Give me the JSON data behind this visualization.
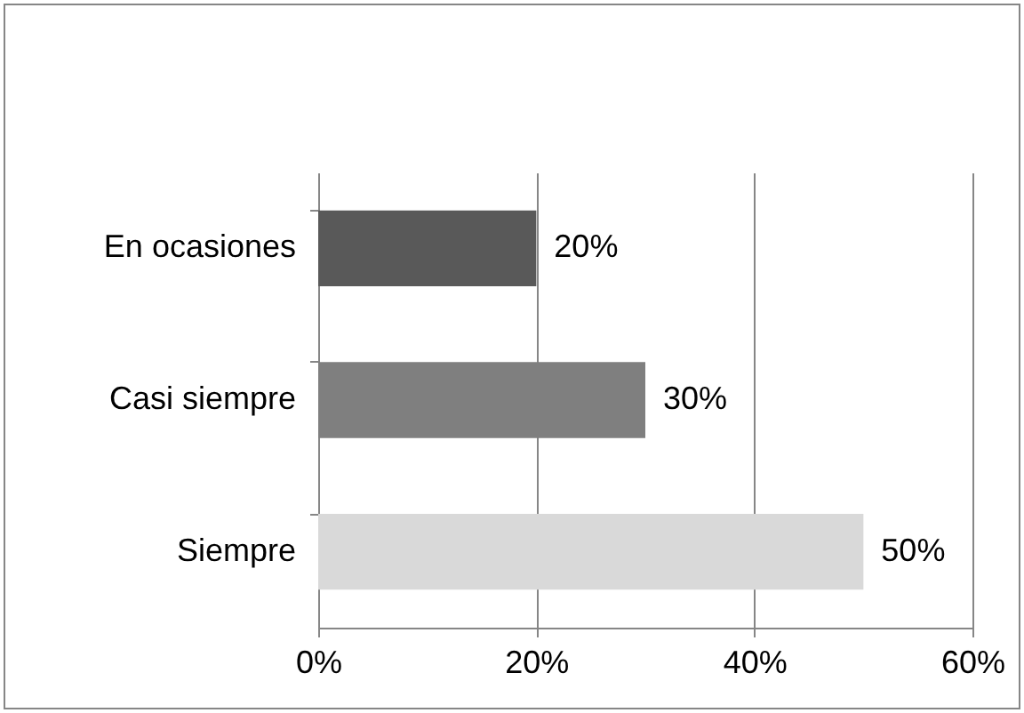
{
  "chart_data": {
    "type": "bar",
    "orientation": "horizontal",
    "categories": [
      "En ocasiones",
      "Casi siempre",
      "Siempre"
    ],
    "values": [
      20,
      30,
      50
    ],
    "colors": [
      "#595959",
      "#7f7f7f",
      "#d9d9d9"
    ],
    "value_labels": [
      "20%",
      "30%",
      "50%"
    ],
    "xlim": [
      0,
      60
    ],
    "xticks": [
      {
        "value": 0,
        "label": "0%"
      },
      {
        "value": 20,
        "label": "20%"
      },
      {
        "value": 40,
        "label": "40%"
      },
      {
        "value": 60,
        "label": "60%"
      }
    ],
    "grid": "x"
  }
}
